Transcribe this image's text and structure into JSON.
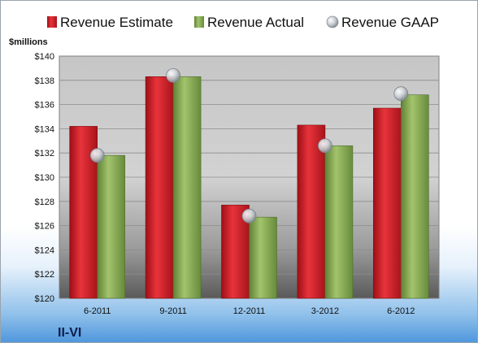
{
  "chart_data": {
    "type": "bar",
    "title": "",
    "company_label": "II-VI",
    "unit_label": "$millions",
    "categories": [
      "6-2011",
      "9-2011",
      "12-2011",
      "3-2012",
      "6-2012"
    ],
    "series": [
      {
        "name": "Revenue Estimate",
        "kind": "bar",
        "color": "#e0202a",
        "values": [
          134.2,
          138.3,
          127.7,
          134.3,
          135.7
        ]
      },
      {
        "name": "Revenue Actual",
        "kind": "bar",
        "color": "#8db35a",
        "values": [
          131.8,
          138.3,
          126.7,
          132.6,
          136.8
        ]
      },
      {
        "name": "Revenue GAAP",
        "kind": "marker",
        "color": "#c9cdd3",
        "values": [
          131.8,
          138.4,
          126.8,
          132.6,
          136.9
        ]
      }
    ],
    "ylim": [
      120,
      140
    ],
    "yticks": [
      "$120",
      "$122",
      "$124",
      "$126",
      "$128",
      "$130",
      "$132",
      "$134",
      "$136",
      "$138",
      "$140"
    ],
    "grid": true,
    "legend_position": "top"
  }
}
